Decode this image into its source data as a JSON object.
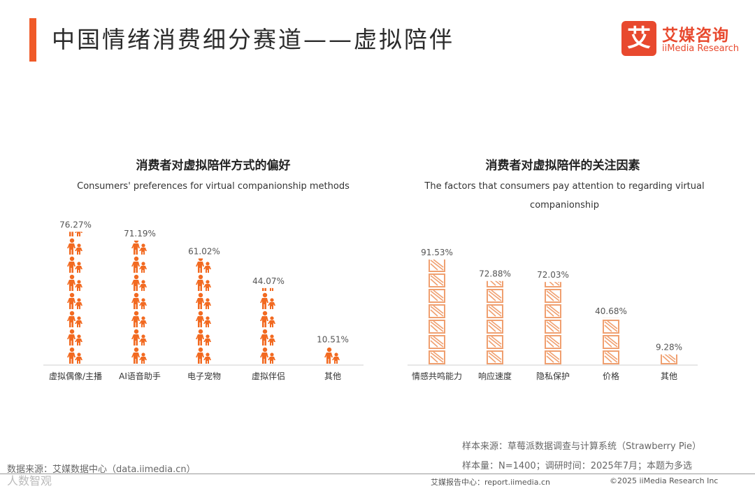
{
  "header": {
    "title": "中国情绪消费细分赛道——虚拟陪伴",
    "logo_mark": "艾",
    "logo_cn": "艾媒咨询",
    "logo_en": "iiMedia Research"
  },
  "colors": {
    "accent": "#f05a28",
    "bar_orange": "#f26a21",
    "bar_outline": "#f0a070"
  },
  "chart_data": [
    {
      "type": "bar",
      "title": "消费者对虚拟陪伴方式的偏好",
      "subtitle": "Consumers' preferences for virtual companionship methods",
      "categories": [
        "虚拟偶像/主播",
        "AI语音助手",
        "电子宠物",
        "虚拟伴侣",
        "其他"
      ],
      "values": [
        76.27,
        71.19,
        61.02,
        44.07,
        10.51
      ],
      "value_labels": [
        "76.27%",
        "71.19%",
        "61.02%",
        "44.07%",
        "10.51%"
      ],
      "ylim": [
        0,
        100
      ],
      "icon": "person-with-child-icon"
    },
    {
      "type": "bar",
      "title": "消费者对虚拟陪伴的关注因素",
      "subtitle": "The factors that consumers pay attention to regarding virtual companionship",
      "categories": [
        "情感共鸣能力",
        "响应速度",
        "隐私保护",
        "价格",
        "其他"
      ],
      "values": [
        91.53,
        72.88,
        72.03,
        40.68,
        9.28
      ],
      "value_labels": [
        "91.53%",
        "72.88%",
        "72.03%",
        "40.68%",
        "9.28%"
      ],
      "ylim": [
        0,
        100
      ],
      "icon": "box-icon"
    }
  ],
  "footer": {
    "sample_source": "样本来源：草莓派数据调查与计算系统（Strawberry Pie）",
    "sample_size": "样本量：N=1400；调研时间：2025年7月；本题为多选",
    "data_source": "数据来源：艾媒数据中心（data.iimedia.cn）",
    "report_center": "艾媒报告中心：report.iimedia.cn",
    "copyright": "©2025  iiMedia Research  Inc",
    "watermark": "人数智观"
  }
}
